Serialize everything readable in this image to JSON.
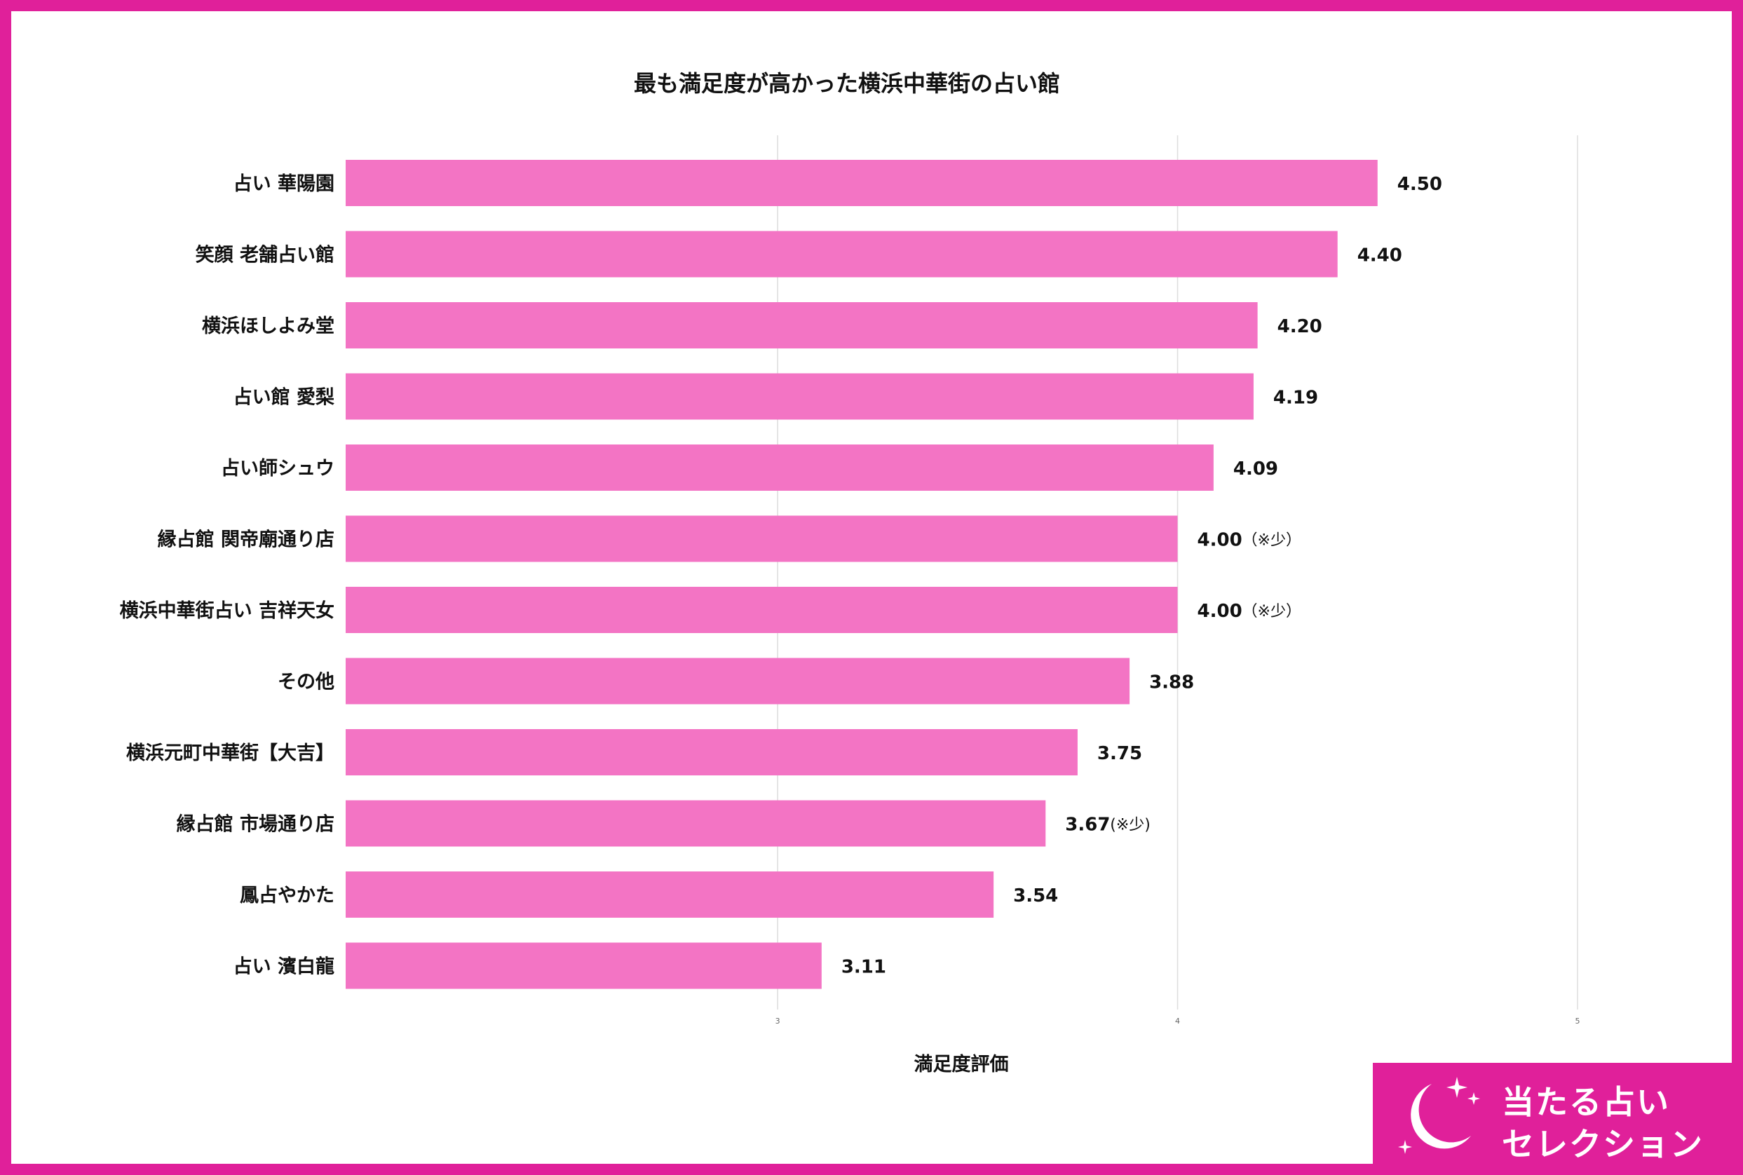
{
  "chart_data": {
    "type": "bar",
    "orientation": "horizontal",
    "title": "最も満足度が高かった横浜中華街の占い館",
    "xlabel": "満足度評価",
    "ylabel": "",
    "xlim": [
      1.92,
      5
    ],
    "xticks": [
      3,
      4,
      5
    ],
    "grid": true,
    "legend": "none",
    "bar_color": "#f374c4",
    "categories": [
      "占い 華陽園",
      "笑顔 老舗占い館",
      "横浜ほしよみ堂",
      "占い館 愛梨",
      "占い師シュウ",
      "縁占館 関帝廟通り店",
      "横浜中華街占い 吉祥天女",
      "その他",
      "横浜元町中華街【大吉】",
      "縁占館 市場通り店",
      "鳳占やかた",
      "占い 濱白龍"
    ],
    "values": [
      4.5,
      4.4,
      4.2,
      4.19,
      4.09,
      4.0,
      4.0,
      3.88,
      3.75,
      3.67,
      3.54,
      3.11
    ],
    "value_labels": [
      "4.50",
      "4.40",
      "4.20",
      "4.19",
      "4.09",
      "4.00",
      "4.00",
      "3.88",
      "3.75",
      "3.67",
      "3.54",
      "3.11"
    ],
    "annotations": [
      "",
      "",
      "",
      "",
      "",
      "（※少）",
      "（※少）",
      "",
      "",
      "(※少)",
      "",
      ""
    ]
  },
  "logo": {
    "line1": "当たる占い",
    "line2": "セレクション",
    "icon": "crescent-moon-sparkles-icon"
  },
  "colors": {
    "frame": "#e0209a",
    "bar": "#f374c4",
    "logo_bg": "#e0209a"
  }
}
